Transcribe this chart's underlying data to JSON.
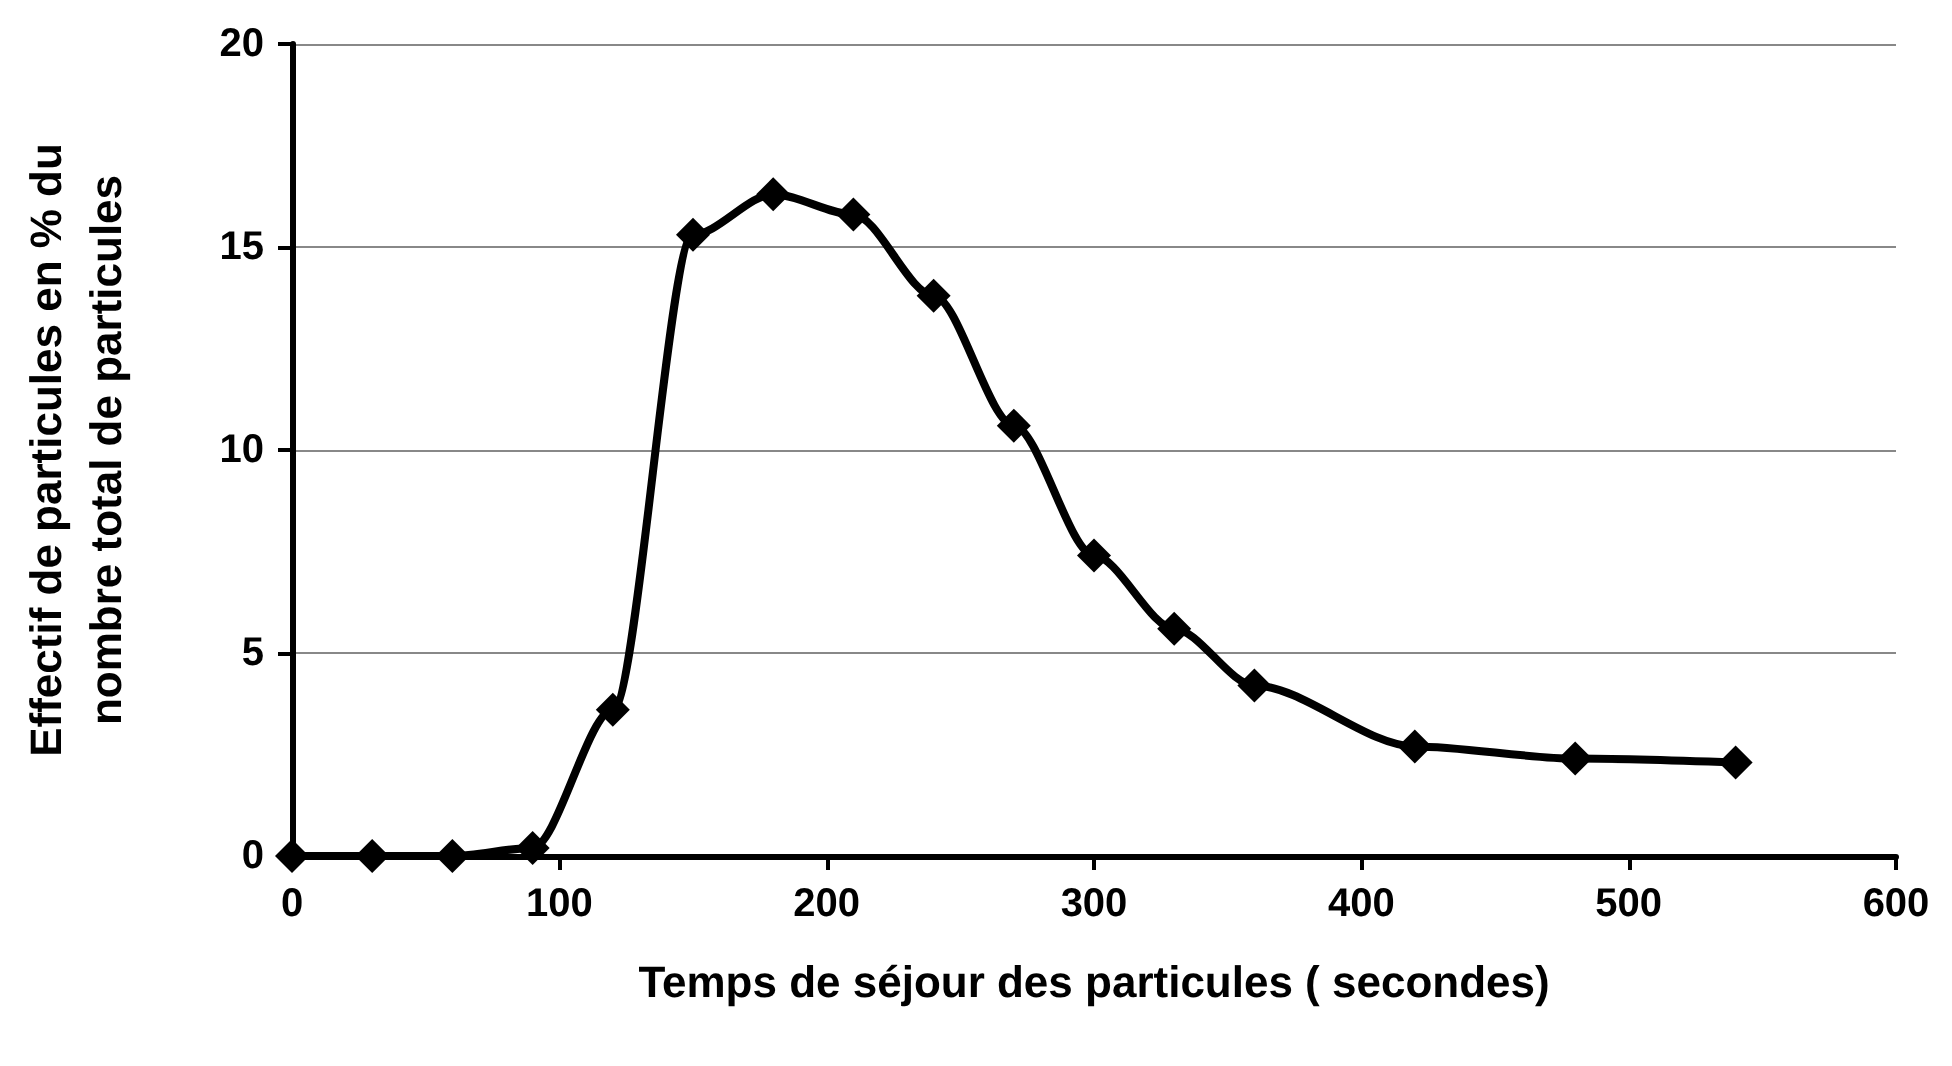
{
  "chart_data": {
    "type": "line",
    "xlabel": "Temps de séjour des particules ( secondes)",
    "ylabel": "Effectif de particules en % du\nnombre total de particules",
    "x": [
      0,
      30,
      60,
      90,
      120,
      150,
      180,
      210,
      240,
      270,
      300,
      330,
      360,
      420,
      480,
      540
    ],
    "series": [
      {
        "color": "#000000",
        "values": [
          0,
          0,
          0,
          0.2,
          3.6,
          15.3,
          16.3,
          15.8,
          13.8,
          10.6,
          7.4,
          5.6,
          4.2,
          2.7,
          2.4,
          2.3
        ]
      }
    ],
    "xlim": [
      0,
      600
    ],
    "xticks": [
      0,
      100,
      200,
      300,
      400,
      500,
      600
    ],
    "ylim": [
      0,
      20
    ],
    "yticks": [
      0,
      5,
      10,
      15,
      20
    ],
    "grid": "y",
    "marker": "diamond",
    "line_style": "solid"
  }
}
